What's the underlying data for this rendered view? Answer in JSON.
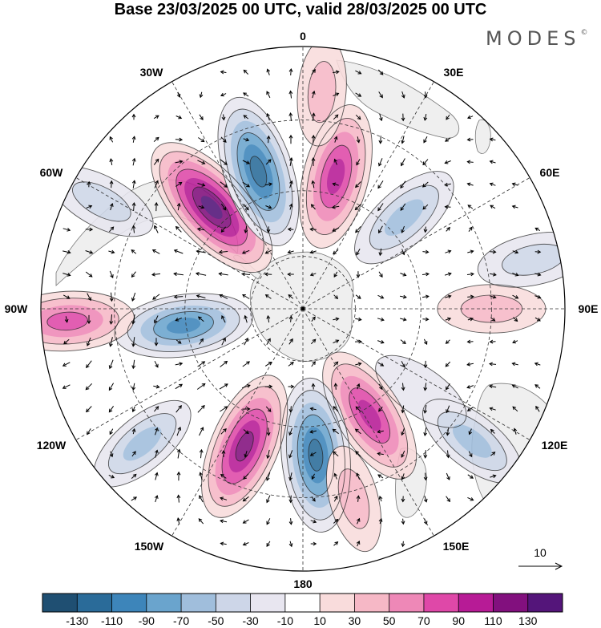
{
  "title": "Base 23/03/2025 00 UTC, valid 28/03/2025 00 UTC",
  "brand": {
    "name": "MODES",
    "mark": "©"
  },
  "map": {
    "projection": "south-polar-stereographic",
    "longitude_labels": [
      "0",
      "30E",
      "60E",
      "90E",
      "120E",
      "150E",
      "180",
      "150W",
      "120W",
      "90W",
      "60W",
      "30W"
    ],
    "land_color": "#efefef",
    "coast_color": "#777777",
    "grid_style": "dashed"
  },
  "anomalies": [
    {
      "lon": -42,
      "r": 0.52,
      "value": 135
    },
    {
      "lon": -18,
      "r": 0.55,
      "value": -120
    },
    {
      "lon": 14,
      "r": 0.52,
      "value": 105
    },
    {
      "lon": 48,
      "r": 0.52,
      "value": -60
    },
    {
      "lon": 90,
      "r": 0.72,
      "value": 30
    },
    {
      "lon": 125,
      "r": 0.55,
      "value": -25
    },
    {
      "lon": 148,
      "r": 0.48,
      "value": 100
    },
    {
      "lon": 175,
      "r": 0.56,
      "value": -120
    },
    {
      "lon": -157,
      "r": 0.57,
      "value": 115
    },
    {
      "lon": -98,
      "r": 0.46,
      "value": -90
    },
    {
      "lon": -93,
      "r": 0.9,
      "value": 80
    },
    {
      "lon": -62,
      "r": 0.87,
      "value": -40
    },
    {
      "lon": 78,
      "r": 0.9,
      "value": -40
    },
    {
      "lon": 128,
      "r": 0.82,
      "value": -50
    },
    {
      "lon": -130,
      "r": 0.8,
      "value": -50
    },
    {
      "lon": 165,
      "r": 0.75,
      "value": 30
    },
    {
      "lon": 5,
      "r": 0.83,
      "value": 30
    }
  ],
  "legend": {
    "ticks": [
      "-130",
      "-110",
      "-90",
      "-70",
      "-50",
      "-30",
      "-10",
      "10",
      "30",
      "50",
      "70",
      "90",
      "110",
      "130"
    ],
    "bins": [
      {
        "color": "#1f4f72"
      },
      {
        "color": "#2a6b99"
      },
      {
        "color": "#3d85ba"
      },
      {
        "color": "#6aa4cd"
      },
      {
        "color": "#a0bedc"
      },
      {
        "color": "#cdd6e8"
      },
      {
        "color": "#e8e6f0"
      },
      {
        "color": "#ffffff"
      },
      {
        "color": "#f9dcdc"
      },
      {
        "color": "#f6b8c6"
      },
      {
        "color": "#ee88b7"
      },
      {
        "color": "#df48a8"
      },
      {
        "color": "#b71b96"
      },
      {
        "color": "#82107e"
      },
      {
        "color": "#54157a"
      }
    ]
  },
  "wind_reference": {
    "label": "10"
  }
}
